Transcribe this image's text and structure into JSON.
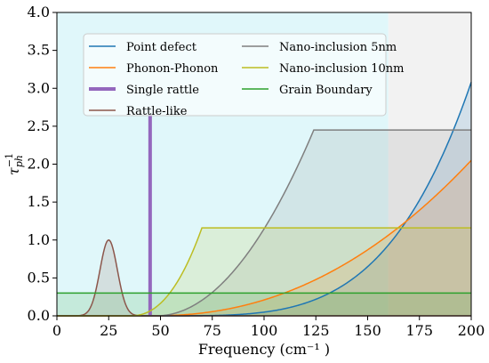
{
  "chart_data": {
    "type": "area",
    "xlabel": "Frequency (cm⁻¹ )",
    "ylabel": "τ",
    "ylabel_sub": "ph",
    "ylabel_sup": "−1",
    "xlim": [
      0,
      200
    ],
    "ylim": [
      0,
      4.0
    ],
    "xticks": [
      0,
      25,
      50,
      75,
      100,
      125,
      150,
      175,
      200
    ],
    "xtick_labels": [
      "0",
      "25",
      "50",
      "75",
      "100",
      "125",
      "150",
      "175",
      "200"
    ],
    "yticks": [
      0.0,
      0.5,
      1.0,
      1.5,
      2.0,
      2.5,
      3.0,
      3.5,
      4.0
    ],
    "ytick_labels": [
      "0.0",
      "0.5",
      "1.0",
      "1.5",
      "2.0",
      "2.5",
      "3.0",
      "3.5",
      "4.0"
    ],
    "grid": false,
    "legend_position": "upper-left",
    "background_region": {
      "x": [
        0,
        160
      ],
      "color": "#e0f7fa"
    },
    "background_region_2": {
      "x": [
        160,
        200
      ],
      "color": "#f2f2f2"
    },
    "series": [
      {
        "name": "Point defect",
        "color": "#1f77b4",
        "kind": "power",
        "x_start": 45,
        "y_end": 3.08,
        "exponent": 4,
        "filled": true
      },
      {
        "name": "Phonon-Phonon",
        "color": "#ff7f0e",
        "kind": "power",
        "x_start": 45,
        "y_end": 2.05,
        "exponent": 2.2,
        "filled": true
      },
      {
        "name": "Single rattle",
        "color": "#9467bd",
        "kind": "vline",
        "x": 45,
        "y_top": 2.65,
        "filled": false
      },
      {
        "name": "Rattle-like",
        "color": "#8c564b",
        "kind": "gaussian",
        "center": 25,
        "peak": 1.0,
        "sigma": 4.2,
        "filled": true
      },
      {
        "name": "Nano-inclusion 5nm",
        "color": "#7f7f7f",
        "kind": "ramp",
        "x_start": 48,
        "x_plateau": 124,
        "plateau": 2.45,
        "exponent": 2.0,
        "filled": true
      },
      {
        "name": "Nano-inclusion 10nm",
        "color": "#bcbd22",
        "kind": "ramp",
        "x_start": 35,
        "x_plateau": 70,
        "plateau": 1.16,
        "exponent": 2.3,
        "filled": true
      },
      {
        "name": "Grain Boundary",
        "color": "#2ca02c",
        "kind": "constant",
        "value": 0.3,
        "filled": true
      }
    ]
  }
}
